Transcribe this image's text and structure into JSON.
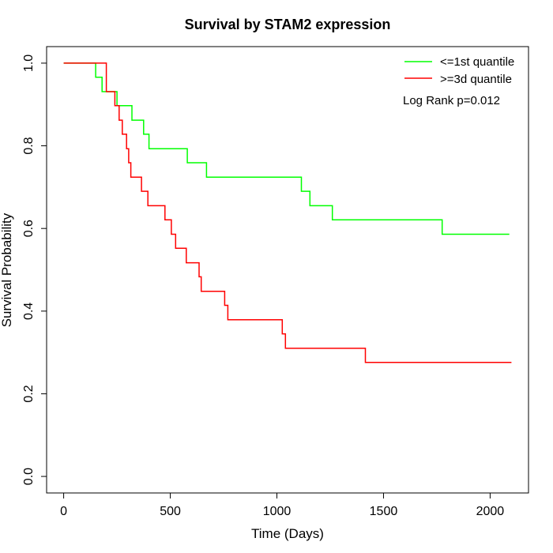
{
  "chart_data": {
    "type": "line",
    "title": "Survival by STAM2 expression",
    "xlabel": "Time (Days)",
    "ylabel": "Survival Probability",
    "xlim": [
      -80,
      2180
    ],
    "ylim": [
      -0.04,
      1.04
    ],
    "x_ticks": [
      0,
      500,
      1000,
      1500,
      2000
    ],
    "y_ticks": [
      0.0,
      0.2,
      0.4,
      0.6,
      0.8,
      1.0
    ],
    "x_tick_labels": [
      "0",
      "500",
      "1000",
      "1500",
      "2000"
    ],
    "y_tick_labels": [
      "0.0",
      "0.2",
      "0.4",
      "0.6",
      "0.8",
      "1.0"
    ],
    "grid": false,
    "legend_position": "top-right",
    "annotation": "Log Rank p=0.012",
    "series": [
      {
        "name": "<=1st quantile",
        "color": "#00ff00",
        "step": true,
        "points": [
          [
            0,
            1.0
          ],
          [
            150,
            1.0
          ],
          [
            150,
            0.966
          ],
          [
            180,
            0.966
          ],
          [
            180,
            0.931
          ],
          [
            250,
            0.931
          ],
          [
            250,
            0.897
          ],
          [
            320,
            0.897
          ],
          [
            320,
            0.862
          ],
          [
            375,
            0.862
          ],
          [
            375,
            0.828
          ],
          [
            400,
            0.828
          ],
          [
            400,
            0.793
          ],
          [
            580,
            0.793
          ],
          [
            580,
            0.759
          ],
          [
            670,
            0.759
          ],
          [
            670,
            0.724
          ],
          [
            1115,
            0.724
          ],
          [
            1115,
            0.69
          ],
          [
            1155,
            0.69
          ],
          [
            1155,
            0.655
          ],
          [
            1260,
            0.655
          ],
          [
            1260,
            0.621
          ],
          [
            1775,
            0.621
          ],
          [
            1775,
            0.586
          ],
          [
            2090,
            0.586
          ]
        ]
      },
      {
        "name": ">=3d quantile",
        "color": "#ff0000",
        "step": true,
        "points": [
          [
            0,
            1.0
          ],
          [
            200,
            1.0
          ],
          [
            200,
            0.931
          ],
          [
            240,
            0.931
          ],
          [
            240,
            0.897
          ],
          [
            260,
            0.897
          ],
          [
            260,
            0.862
          ],
          [
            275,
            0.862
          ],
          [
            275,
            0.828
          ],
          [
            295,
            0.828
          ],
          [
            295,
            0.793
          ],
          [
            305,
            0.793
          ],
          [
            305,
            0.759
          ],
          [
            315,
            0.759
          ],
          [
            315,
            0.724
          ],
          [
            365,
            0.724
          ],
          [
            365,
            0.69
          ],
          [
            395,
            0.69
          ],
          [
            395,
            0.655
          ],
          [
            475,
            0.655
          ],
          [
            475,
            0.621
          ],
          [
            505,
            0.621
          ],
          [
            505,
            0.586
          ],
          [
            525,
            0.586
          ],
          [
            525,
            0.552
          ],
          [
            575,
            0.552
          ],
          [
            575,
            0.517
          ],
          [
            635,
            0.517
          ],
          [
            635,
            0.483
          ],
          [
            645,
            0.483
          ],
          [
            645,
            0.448
          ],
          [
            755,
            0.448
          ],
          [
            755,
            0.414
          ],
          [
            770,
            0.414
          ],
          [
            770,
            0.379
          ],
          [
            1025,
            0.379
          ],
          [
            1025,
            0.345
          ],
          [
            1040,
            0.345
          ],
          [
            1040,
            0.31
          ],
          [
            1415,
            0.31
          ],
          [
            1415,
            0.276
          ],
          [
            2100,
            0.276
          ]
        ]
      }
    ]
  }
}
